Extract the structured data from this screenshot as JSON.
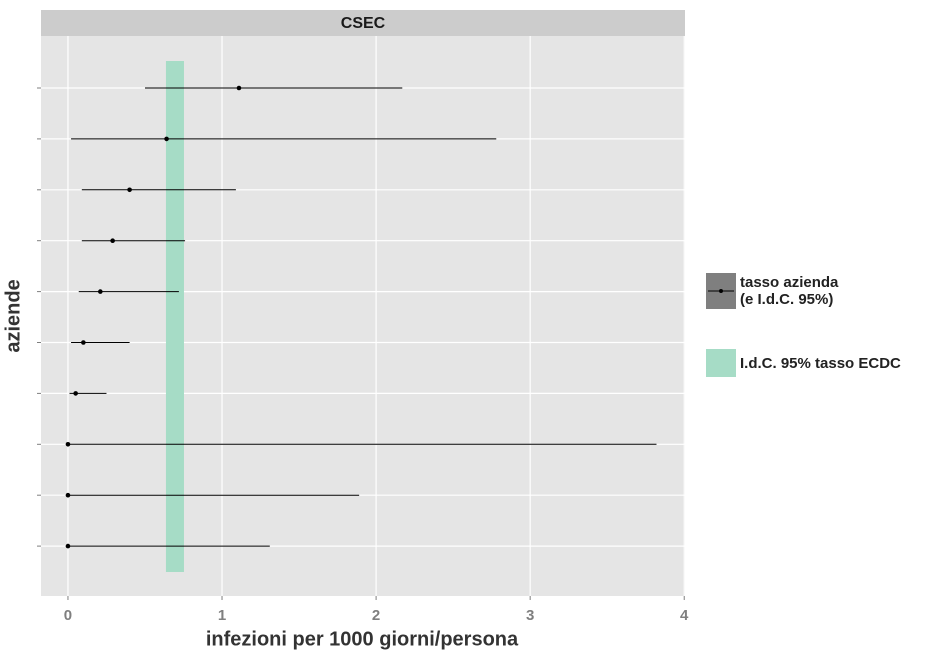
{
  "chart_data": {
    "type": "forest",
    "strip": "CSEC",
    "xlabel": "infezioni per 1000 giorni/persona",
    "ylabel": "aziende",
    "categories": [
      null,
      null,
      null,
      null,
      null,
      null,
      null,
      null,
      null,
      null
    ],
    "series": [
      {
        "name": "tasso azienda\n(e I.d.C. 95%)",
        "color": "#000000",
        "values": [
          1.11,
          0.64,
          0.4,
          0.29,
          0.21,
          0.1,
          0.05,
          0,
          0,
          0
        ],
        "lower": [
          0.5,
          0.02,
          0.09,
          0.09,
          0.07,
          0.02,
          0.01,
          0,
          0,
          0
        ],
        "upper": [
          2.17,
          2.78,
          1.09,
          0.76,
          0.72,
          0.4,
          0.25,
          3.82,
          1.89,
          1.31
        ]
      }
    ],
    "band": {
      "name": "I.d.C. 95% tasso ECDC",
      "color": "#a6dcc6",
      "range": [
        0.636,
        0.753
      ]
    },
    "xlim": [
      -0.175,
      4.005
    ],
    "xticks": [
      0,
      1,
      2,
      3,
      4
    ],
    "grid": true
  }
}
